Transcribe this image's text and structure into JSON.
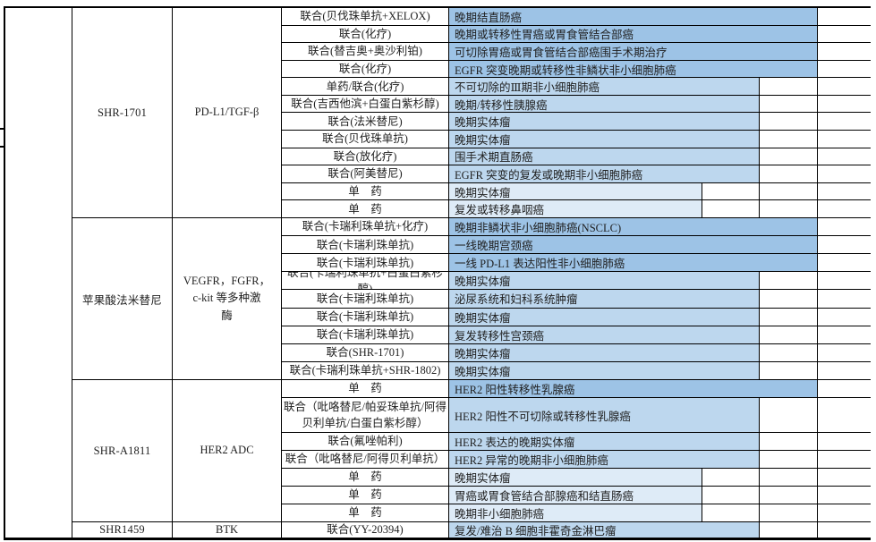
{
  "colors": {
    "bar_long": "#9DC3E6",
    "bar_medium": "#BDD7EE",
    "bar_short": "#DEEBF7",
    "border": "#000000",
    "text": "#1F1F1F"
  },
  "table": {
    "bar_levels": [
      "long",
      "medium",
      "short"
    ],
    "sections": [
      {
        "drug": "SHR-1701",
        "target_lines": [
          "PD-L1/TGF-β"
        ],
        "rows": [
          {
            "therapy": "联合(贝伐珠单抗+XELOX)",
            "indication": "晚期结直肠癌",
            "bar": "long"
          },
          {
            "therapy": "联合(化疗)",
            "indication": "晚期或转移性胃癌或胃食管结合部癌",
            "bar": "long"
          },
          {
            "therapy": "联合(替吉奥+奥沙利铂)",
            "indication": "可切除胃癌或胃食管结合部癌围手术期治疗",
            "bar": "long"
          },
          {
            "therapy": "联合(化疗)",
            "indication": "EGFR 突变晚期或转移性非鳞状非小细胞肺癌",
            "bar": "long"
          },
          {
            "therapy": "单药/联合(化疗)",
            "indication": "不可切除的Ⅲ期非小细胞肺癌",
            "bar": "medium"
          },
          {
            "therapy": "联合(吉西他滨+白蛋白紫杉醇)",
            "indication": "晚期/转移性胰腺癌",
            "bar": "medium"
          },
          {
            "therapy": "联合(法米替尼)",
            "indication": "晚期实体瘤",
            "bar": "medium"
          },
          {
            "therapy": "联合(贝伐珠单抗)",
            "indication": "晚期实体瘤",
            "bar": "medium"
          },
          {
            "therapy": "联合(放化疗)",
            "indication": "围手术期直肠癌",
            "bar": "medium"
          },
          {
            "therapy": "联合(阿美替尼)",
            "indication": "EGFR 突变的复发或晚期非小细胞肺癌",
            "bar": "medium"
          },
          {
            "therapy": "单　药",
            "indication": "晚期实体瘤",
            "bar": "short"
          },
          {
            "therapy": "单　药",
            "indication": "复发或转移鼻咽癌",
            "bar": "short"
          }
        ]
      },
      {
        "drug": "苹果酸法米替尼",
        "target_lines": [
          "VEGFR，FGFR，",
          "c-kit 等多种激",
          "酶"
        ],
        "rows": [
          {
            "therapy": "联合(卡瑞利珠单抗+化疗)",
            "indication": "晚期非鳞状非小细胞肺癌(NSCLC)",
            "bar": "long"
          },
          {
            "therapy": "联合(卡瑞利珠单抗)",
            "indication": "一线晚期宫颈癌",
            "bar": "long"
          },
          {
            "therapy": "联合(卡瑞利珠单抗)",
            "indication": "一线 PD-L1 表达阳性非小细胞肺癌",
            "bar": "long"
          },
          {
            "therapy": "联合(卡瑞利珠单抗+白蛋白紫杉醇)",
            "indication": "晚期实体瘤",
            "bar": "medium"
          },
          {
            "therapy": "联合(卡瑞利珠单抗)",
            "indication": "泌尿系统和妇科系统肿瘤",
            "bar": "medium"
          },
          {
            "therapy": "联合(卡瑞利珠单抗)",
            "indication": "晚期实体瘤",
            "bar": "medium"
          },
          {
            "therapy": "联合(卡瑞利珠单抗)",
            "indication": "复发转移性宫颈癌",
            "bar": "medium"
          },
          {
            "therapy": "联合(SHR-1701)",
            "indication": "晚期实体瘤",
            "bar": "medium"
          },
          {
            "therapy": "联合(卡瑞利珠单抗+SHR-1802)",
            "indication": "晚期实体瘤",
            "bar": "medium"
          }
        ]
      },
      {
        "drug": "SHR-A1811",
        "target_lines": [
          "HER2 ADC"
        ],
        "rows": [
          {
            "therapy": "单　药",
            "indication": "HER2 阳性转移性乳腺癌",
            "bar": "long"
          },
          {
            "therapy": "联合（吡咯替尼/帕妥珠单抗/阿得贝利单抗/白蛋白紫杉醇）",
            "indication": "HER2 阳性不可切除或转移性乳腺癌",
            "bar": "medium",
            "tall": true
          },
          {
            "therapy": "联合(氟唑帕利)",
            "indication": "HER2 表达的晚期实体瘤",
            "bar": "medium"
          },
          {
            "therapy": "联合（吡咯替尼/阿得贝利单抗）",
            "indication": "HER2 异常的晚期非小细胞肺癌",
            "bar": "medium"
          },
          {
            "therapy": "单　药",
            "indication": "晚期实体瘤",
            "bar": "short"
          },
          {
            "therapy": "单　药",
            "indication": "胃癌或胃食管结合部腺癌和结直肠癌",
            "bar": "short"
          },
          {
            "therapy": "单　药",
            "indication": "晚期非小细胞肺癌",
            "bar": "short"
          }
        ]
      },
      {
        "drug": "SHR1459",
        "target_lines": [
          "BTK"
        ],
        "rows": [
          {
            "therapy": "联合(YY-20394)",
            "indication": "复发/难治 B 细胞非霍奇金淋巴瘤",
            "bar": "medium"
          }
        ]
      }
    ]
  }
}
